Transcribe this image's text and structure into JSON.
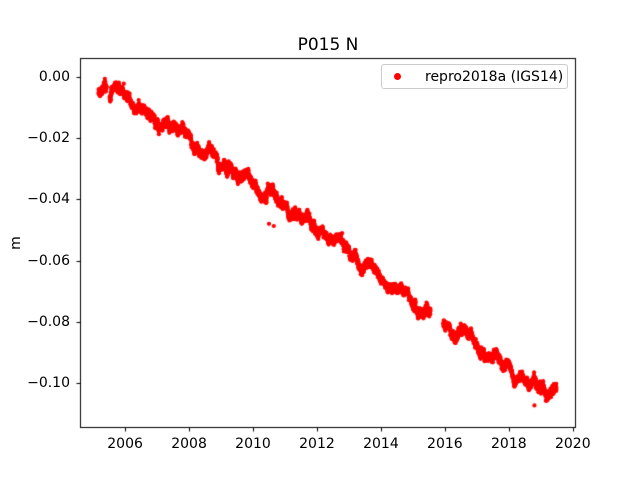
{
  "chart_data": {
    "type": "scatter",
    "title": "P015 N",
    "xlabel": "",
    "ylabel": "m",
    "xlim": [
      2004.59,
      2020.1
    ],
    "ylim": [
      -0.1143,
      0.0062
    ],
    "xticks": [
      2006,
      2008,
      2010,
      2012,
      2014,
      2016,
      2018,
      2020
    ],
    "xtick_labels": [
      "2006",
      "2008",
      "2010",
      "2012",
      "2014",
      "2016",
      "2018",
      "2020"
    ],
    "yticks": [
      0,
      -0.02,
      -0.04,
      -0.06,
      -0.08,
      -0.1
    ],
    "ytick_labels": [
      "0.00",
      "−0.02",
      "−0.04",
      "−0.06",
      "−0.08",
      "−0.10"
    ],
    "grid": false,
    "axes_box": true,
    "legend": {
      "location": "upper right",
      "entries": [
        {
          "label": "repro2018a (IGS14)",
          "marker": "dot",
          "color": "#ff0000"
        }
      ]
    },
    "series": [
      {
        "name": "repro2018a (IGS14)",
        "color": "#ff0000",
        "marker": "point",
        "marker_radius_px": 2.1,
        "units": "m",
        "time_range_yr": [
          2005.17,
          2019.49
        ],
        "samples_per_year": 365,
        "trend_points": [
          [
            2005.17,
            -0.0025
          ],
          [
            2006.0,
            -0.007
          ],
          [
            2007.0,
            -0.014
          ],
          [
            2008.0,
            -0.0205
          ],
          [
            2009.0,
            -0.0285
          ],
          [
            2010.0,
            -0.0355
          ],
          [
            2011.0,
            -0.042
          ],
          [
            2012.0,
            -0.0495
          ],
          [
            2013.0,
            -0.0565
          ],
          [
            2014.0,
            -0.0655
          ],
          [
            2015.0,
            -0.073
          ],
          [
            2015.55,
            -0.0765
          ],
          [
            2015.95,
            -0.08
          ],
          [
            2017.0,
            -0.0885
          ],
          [
            2018.0,
            -0.0945
          ],
          [
            2019.0,
            -0.1015
          ],
          [
            2019.49,
            -0.104
          ]
        ],
        "seasonal": {
          "amplitude_m": 0.0011,
          "period_yr": 1.0,
          "phase_yr": 0.45
        },
        "wobble": {
          "amplitude_m": 0.0006,
          "period_yr": 0.37,
          "phase_rad": 2.0
        },
        "noise": {
          "ar1_sigma_m": 0.00022,
          "ar1_phi": 0.97,
          "iid_sigma_m": 0.0005,
          "seed": 42
        },
        "gaps_yr": [
          [
            2005.42,
            2005.52
          ],
          [
            2015.55,
            2015.95
          ]
        ],
        "outlier_points": [
          [
            2005.96,
            -0.0023
          ],
          [
            2010.5,
            -0.048
          ],
          [
            2010.65,
            -0.0487
          ],
          [
            2018.8,
            -0.1072
          ]
        ]
      }
    ]
  }
}
